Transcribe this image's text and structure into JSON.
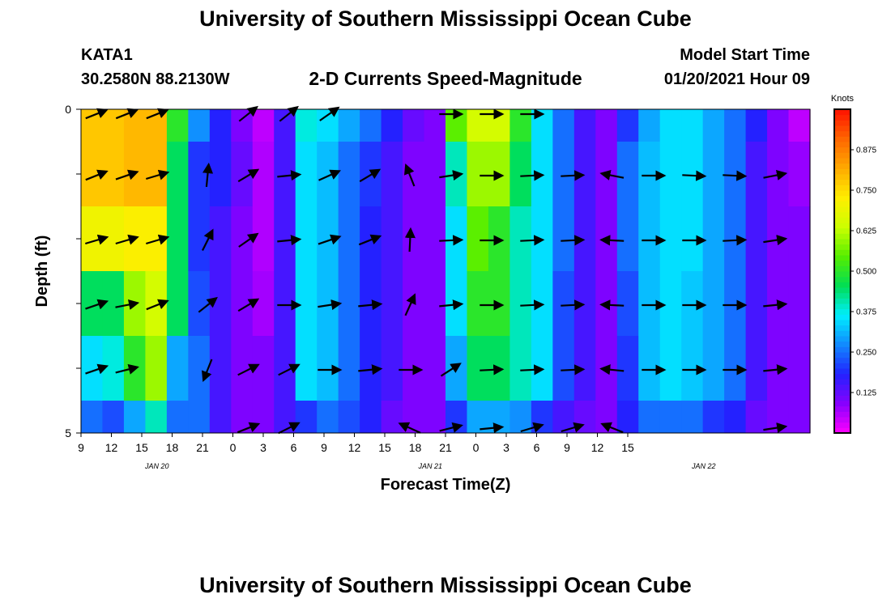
{
  "header": {
    "title": "University of Southern Mississippi Ocean Cube",
    "station": "KATA1",
    "coords": "30.2580N 88.2130W",
    "subtitle": "2-D Currents Speed-Magnitude",
    "model_label": "Model Start Time",
    "model_time": "01/20/2021 Hour 09"
  },
  "footer": {
    "title": "University of Southern Mississippi Ocean Cube"
  },
  "colors": {
    "scale": [
      "#ff00ff",
      "#8800ff",
      "#2222ff",
      "#1188ff",
      "#00eeff",
      "#00dd55",
      "#55ee00",
      "#ccff00",
      "#ffee00",
      "#ffaa00",
      "#ff6600",
      "#ff1100"
    ],
    "arrow": "#000000",
    "axis": "#000000"
  },
  "chart_data": {
    "type": "heatmap",
    "title": "2-D Currents Speed-Magnitude",
    "xlabel": "Forecast Time(Z)",
    "ylabel": "Depth (ft)",
    "units_label": "Knots",
    "x_ticks": [
      "9",
      "12",
      "15",
      "18",
      "21",
      "0",
      "3",
      "6",
      "9",
      "12",
      "15",
      "18",
      "21",
      "0",
      "3",
      "6",
      "9",
      "12",
      "15"
    ],
    "date_labels": [
      {
        "text": "JAN 20",
        "hour": 16.5
      },
      {
        "text": "JAN 21",
        "hour": 43.5
      },
      {
        "text": "JAN 22",
        "hour": 70.5
      }
    ],
    "x_range_hours": [
      9,
      81
    ],
    "y_ticks": [
      "0",
      "5"
    ],
    "ylim": [
      0,
      5
    ],
    "colorbar": {
      "range": [
        0,
        1.0
      ],
      "tick_values": [
        0.125,
        0.25,
        0.375,
        0.5,
        0.625,
        0.75,
        0.875
      ],
      "tick_labels": [
        "0.125",
        "0.250",
        "0.375",
        "0.500",
        "0.625",
        "0.750",
        "0.875"
      ]
    },
    "layers": [
      {
        "depth_range": [
          0,
          0.5
        ],
        "speeds": [
          0.78,
          0.78,
          0.8,
          0.8,
          0.5,
          0.28,
          0.18,
          0.1,
          0.05,
          0.15,
          0.38,
          0.35,
          0.3,
          0.25,
          0.18,
          0.12,
          0.1,
          0.55,
          0.65,
          0.65,
          0.5,
          0.35,
          0.25,
          0.15,
          0.1,
          0.2,
          0.3,
          0.35,
          0.35,
          0.3,
          0.25,
          0.18,
          0.1,
          0.05
        ]
      },
      {
        "depth_range": [
          0.5,
          1.5
        ],
        "speeds": [
          0.78,
          0.78,
          0.8,
          0.8,
          0.45,
          0.2,
          0.18,
          0.12,
          0.06,
          0.15,
          0.35,
          0.32,
          0.25,
          0.2,
          0.15,
          0.1,
          0.1,
          0.4,
          0.6,
          0.6,
          0.45,
          0.35,
          0.25,
          0.15,
          0.1,
          0.25,
          0.32,
          0.35,
          0.35,
          0.3,
          0.25,
          0.15,
          0.1,
          0.08
        ]
      },
      {
        "depth_range": [
          1.5,
          2.5
        ],
        "speeds": [
          0.7,
          0.7,
          0.72,
          0.72,
          0.45,
          0.2,
          0.15,
          0.1,
          0.06,
          0.15,
          0.35,
          0.32,
          0.25,
          0.18,
          0.15,
          0.1,
          0.1,
          0.35,
          0.55,
          0.5,
          0.4,
          0.35,
          0.25,
          0.15,
          0.1,
          0.25,
          0.32,
          0.35,
          0.35,
          0.3,
          0.25,
          0.15,
          0.1,
          0.1
        ]
      },
      {
        "depth_range": [
          2.5,
          3.5
        ],
        "speeds": [
          0.45,
          0.45,
          0.6,
          0.65,
          0.45,
          0.22,
          0.15,
          0.1,
          0.07,
          0.15,
          0.35,
          0.32,
          0.25,
          0.18,
          0.15,
          0.1,
          0.1,
          0.35,
          0.5,
          0.5,
          0.4,
          0.35,
          0.22,
          0.15,
          0.1,
          0.22,
          0.32,
          0.35,
          0.33,
          0.3,
          0.25,
          0.15,
          0.1,
          0.1
        ]
      },
      {
        "depth_range": [
          3.5,
          4.5
        ],
        "speeds": [
          0.35,
          0.38,
          0.5,
          0.6,
          0.3,
          0.25,
          0.15,
          0.1,
          0.1,
          0.15,
          0.35,
          0.32,
          0.25,
          0.18,
          0.15,
          0.1,
          0.1,
          0.3,
          0.45,
          0.45,
          0.4,
          0.35,
          0.22,
          0.15,
          0.1,
          0.2,
          0.32,
          0.35,
          0.33,
          0.3,
          0.25,
          0.15,
          0.1,
          0.1
        ]
      },
      {
        "depth_range": [
          4.5,
          5.0
        ],
        "speeds": [
          0.25,
          0.22,
          0.3,
          0.4,
          0.25,
          0.25,
          0.15,
          0.1,
          0.1,
          0.15,
          0.2,
          0.25,
          0.22,
          0.18,
          0.12,
          0.1,
          0.1,
          0.2,
          0.3,
          0.3,
          0.28,
          0.2,
          0.15,
          0.12,
          0.1,
          0.18,
          0.25,
          0.25,
          0.25,
          0.2,
          0.18,
          0.12,
          0.1,
          0.1
        ]
      }
    ],
    "vectors": {
      "hours": [
        10.5,
        13.5,
        16.5,
        21.5,
        25.5,
        29.5,
        33.5,
        37.5,
        41.5,
        45.5,
        49.5,
        53.5,
        57.5,
        61.5,
        65.5,
        69.5,
        73.5,
        77.5
      ],
      "depths": [
        0,
        1,
        2,
        3,
        4,
        5
      ],
      "rows": [
        [
          [
            1,
            0.4
          ],
          [
            1,
            0.4
          ],
          [
            1,
            0.4
          ],
          null,
          [
            1,
            0.8
          ],
          [
            1,
            0.8
          ],
          [
            1,
            0.7
          ],
          null,
          null,
          [
            1,
            0
          ],
          [
            1,
            0
          ],
          [
            1,
            0
          ],
          null,
          null,
          null,
          null,
          null,
          null
        ],
        [
          [
            1,
            0.4
          ],
          [
            1,
            0.35
          ],
          [
            1,
            0.3
          ],
          [
            0.1,
            1
          ],
          [
            1,
            0.6
          ],
          [
            1,
            0.1
          ],
          [
            1,
            0.45
          ],
          [
            1,
            0.6
          ],
          [
            -0.4,
            1
          ],
          [
            1,
            0.15
          ],
          [
            1,
            0
          ],
          [
            1,
            0.05
          ],
          [
            1,
            0.05
          ],
          [
            -1,
            0.2
          ],
          [
            1,
            0
          ],
          [
            1,
            -0.05
          ],
          [
            1,
            -0.05
          ],
          [
            1,
            0.2
          ]
        ],
        [
          [
            1,
            0.3
          ],
          [
            1,
            0.3
          ],
          [
            1,
            0.3
          ],
          [
            0.5,
            1
          ],
          [
            1,
            0.7
          ],
          [
            1,
            0.1
          ],
          [
            1,
            0.35
          ],
          [
            1,
            0.4
          ],
          [
            0.05,
            1
          ],
          [
            1,
            0.05
          ],
          [
            1,
            0
          ],
          [
            1,
            0.05
          ],
          [
            1,
            0.05
          ],
          [
            -1,
            0.05
          ],
          [
            1,
            0
          ],
          [
            1,
            0
          ],
          [
            1,
            0.05
          ],
          [
            1,
            0.15
          ]
        ],
        [
          [
            1,
            0.35
          ],
          [
            1,
            0.2
          ],
          [
            1,
            0.4
          ],
          [
            1,
            0.8
          ],
          [
            1,
            0.6
          ],
          [
            1,
            0
          ],
          [
            1,
            0.15
          ],
          [
            1,
            0.1
          ],
          [
            0.45,
            1
          ],
          [
            1,
            0.1
          ],
          [
            1,
            0
          ],
          [
            1,
            0.05
          ],
          [
            1,
            0.05
          ],
          [
            -1,
            0.05
          ],
          [
            1,
            0
          ],
          [
            1,
            0
          ],
          [
            1,
            0
          ],
          [
            1,
            0.1
          ]
        ],
        [
          [
            1,
            0.35
          ],
          [
            1,
            0.25
          ],
          null,
          [
            -0.4,
            -1
          ],
          [
            1,
            0.5
          ],
          [
            1,
            0.5
          ],
          [
            1,
            0
          ],
          [
            1,
            0.1
          ],
          [
            1,
            0
          ],
          [
            1,
            0.65
          ],
          [
            1,
            0.05
          ],
          [
            1,
            0.05
          ],
          [
            1,
            0.05
          ],
          [
            -1,
            0.1
          ],
          [
            1,
            0
          ],
          [
            1,
            0
          ],
          [
            1,
            0
          ],
          [
            1,
            0.1
          ]
        ],
        [
          null,
          null,
          null,
          null,
          [
            1,
            0.4
          ],
          [
            1,
            0.5
          ],
          null,
          null,
          [
            -1,
            0.45
          ],
          [
            1,
            0.25
          ],
          [
            1,
            0.1
          ],
          [
            1,
            0.3
          ],
          [
            1,
            0.3
          ],
          [
            -1,
            0.4
          ],
          null,
          null,
          null,
          [
            1,
            0.15
          ]
        ]
      ]
    }
  }
}
